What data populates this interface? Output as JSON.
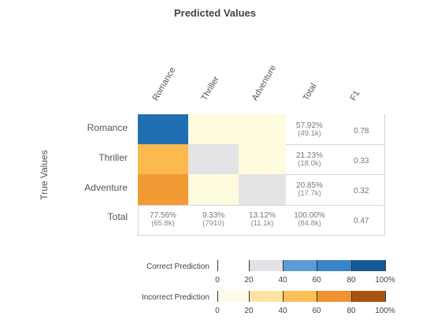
{
  "chart_data": {
    "type": "heatmap",
    "title": "Predicted Values",
    "ylabel": "True Values",
    "columns": [
      "Romance",
      "Thriller",
      "Adventure",
      "Total",
      "F1"
    ],
    "rows": [
      "Romance",
      "Thriller",
      "Adventure",
      "Total"
    ],
    "row_totals": [
      {
        "pct": "57.92%",
        "count": "(49.1k)",
        "f1": "0.78"
      },
      {
        "pct": "21.23%",
        "count": "(18.0k)",
        "f1": "0.33"
      },
      {
        "pct": "20.85%",
        "count": "(17.7k)",
        "f1": "0.32"
      }
    ],
    "column_totals": [
      {
        "pct": "77.56%",
        "count": "(65.8k)"
      },
      {
        "pct": "9.33%",
        "count": "(7910)"
      },
      {
        "pct": "13.12%",
        "count": "(11.1k)"
      }
    ],
    "grand_total": {
      "pct": "100.00%",
      "count": "(84.8k)",
      "f1": "0.47"
    },
    "cell_levels_pct": [
      [
        90,
        8,
        8
      ],
      [
        45,
        10,
        8
      ],
      [
        70,
        8,
        12
      ]
    ],
    "legend": [
      {
        "label": "Correct Prediction",
        "colors": [
          "#ffffff",
          "#e2e2e6",
          "#5b9bd6",
          "#3a85c8",
          "#1f6fb2",
          "#155a96"
        ]
      },
      {
        "label": "Incorrect Prediction",
        "colors": [
          "#ffffff",
          "#fff5d0",
          "#fbc969",
          "#f0962e",
          "#da7b1a",
          "#a85410"
        ]
      }
    ],
    "legend_ticks": [
      "0",
      "20",
      "40",
      "60",
      "80",
      "100%"
    ]
  }
}
